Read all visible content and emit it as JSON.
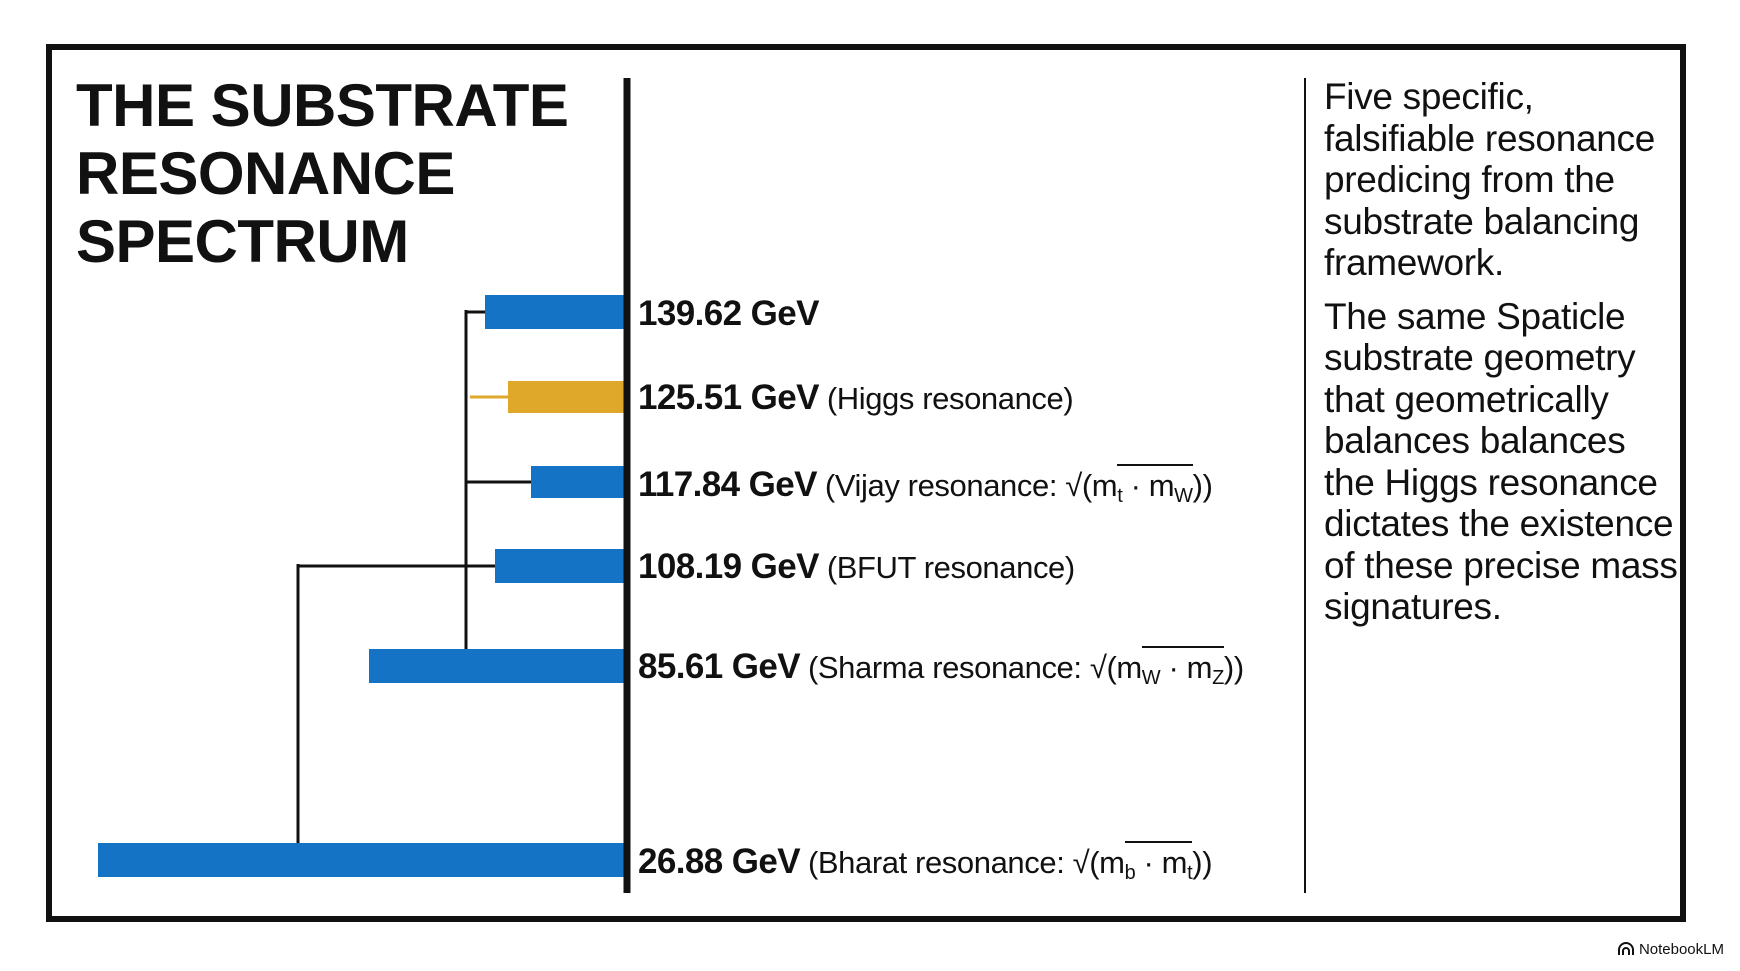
{
  "title": {
    "line1": "THE SUBSTRATE",
    "line2": "RESONANCE",
    "line3": "SPECTRUM"
  },
  "colors": {
    "bar": "#1573c6",
    "highlight": "#e0a82a",
    "ink": "#111111"
  },
  "resonances": [
    {
      "mass": "139.62 GeV",
      "value": 139.62,
      "note": "",
      "color": "bar"
    },
    {
      "mass": "125.51 GeV",
      "value": 125.51,
      "note": "(Higgs resonance)",
      "color": "highlight"
    },
    {
      "mass": "117.84 GeV",
      "value": 117.84,
      "note_prefix": "(Vijay resonance: √(m",
      "sub1": "t",
      "mid": " · m",
      "sub2": "W",
      "note_suffix": "))",
      "color": "bar"
    },
    {
      "mass": "108.19 GeV",
      "value": 108.19,
      "note": "(BFUT resonance)",
      "color": "bar"
    },
    {
      "mass": "85.61 GeV",
      "value": 85.61,
      "note_prefix": "(Sharma resonance: √(m",
      "sub1": "W",
      "mid": " · m",
      "sub2": "Z",
      "note_suffix": "))",
      "color": "bar"
    },
    {
      "mass": "26.88 GeV",
      "value": 26.88,
      "note_prefix": "(Bharat resonance: √(m",
      "sub1": "b",
      "mid": " · m",
      "sub2": "t",
      "note_suffix": "))",
      "color": "bar"
    }
  ],
  "side_text": {
    "paragraph1": "Five specific, falsifiable resonance predicing from the substrate balancing framework.",
    "paragraph2": "The same Spaticle substrate geometry that geometrically balances balances the Higgs resonance dictates the existence of these precise mass signatures."
  },
  "badge": {
    "icon": "notebooklm-icon",
    "label": "NotebookLM"
  }
}
